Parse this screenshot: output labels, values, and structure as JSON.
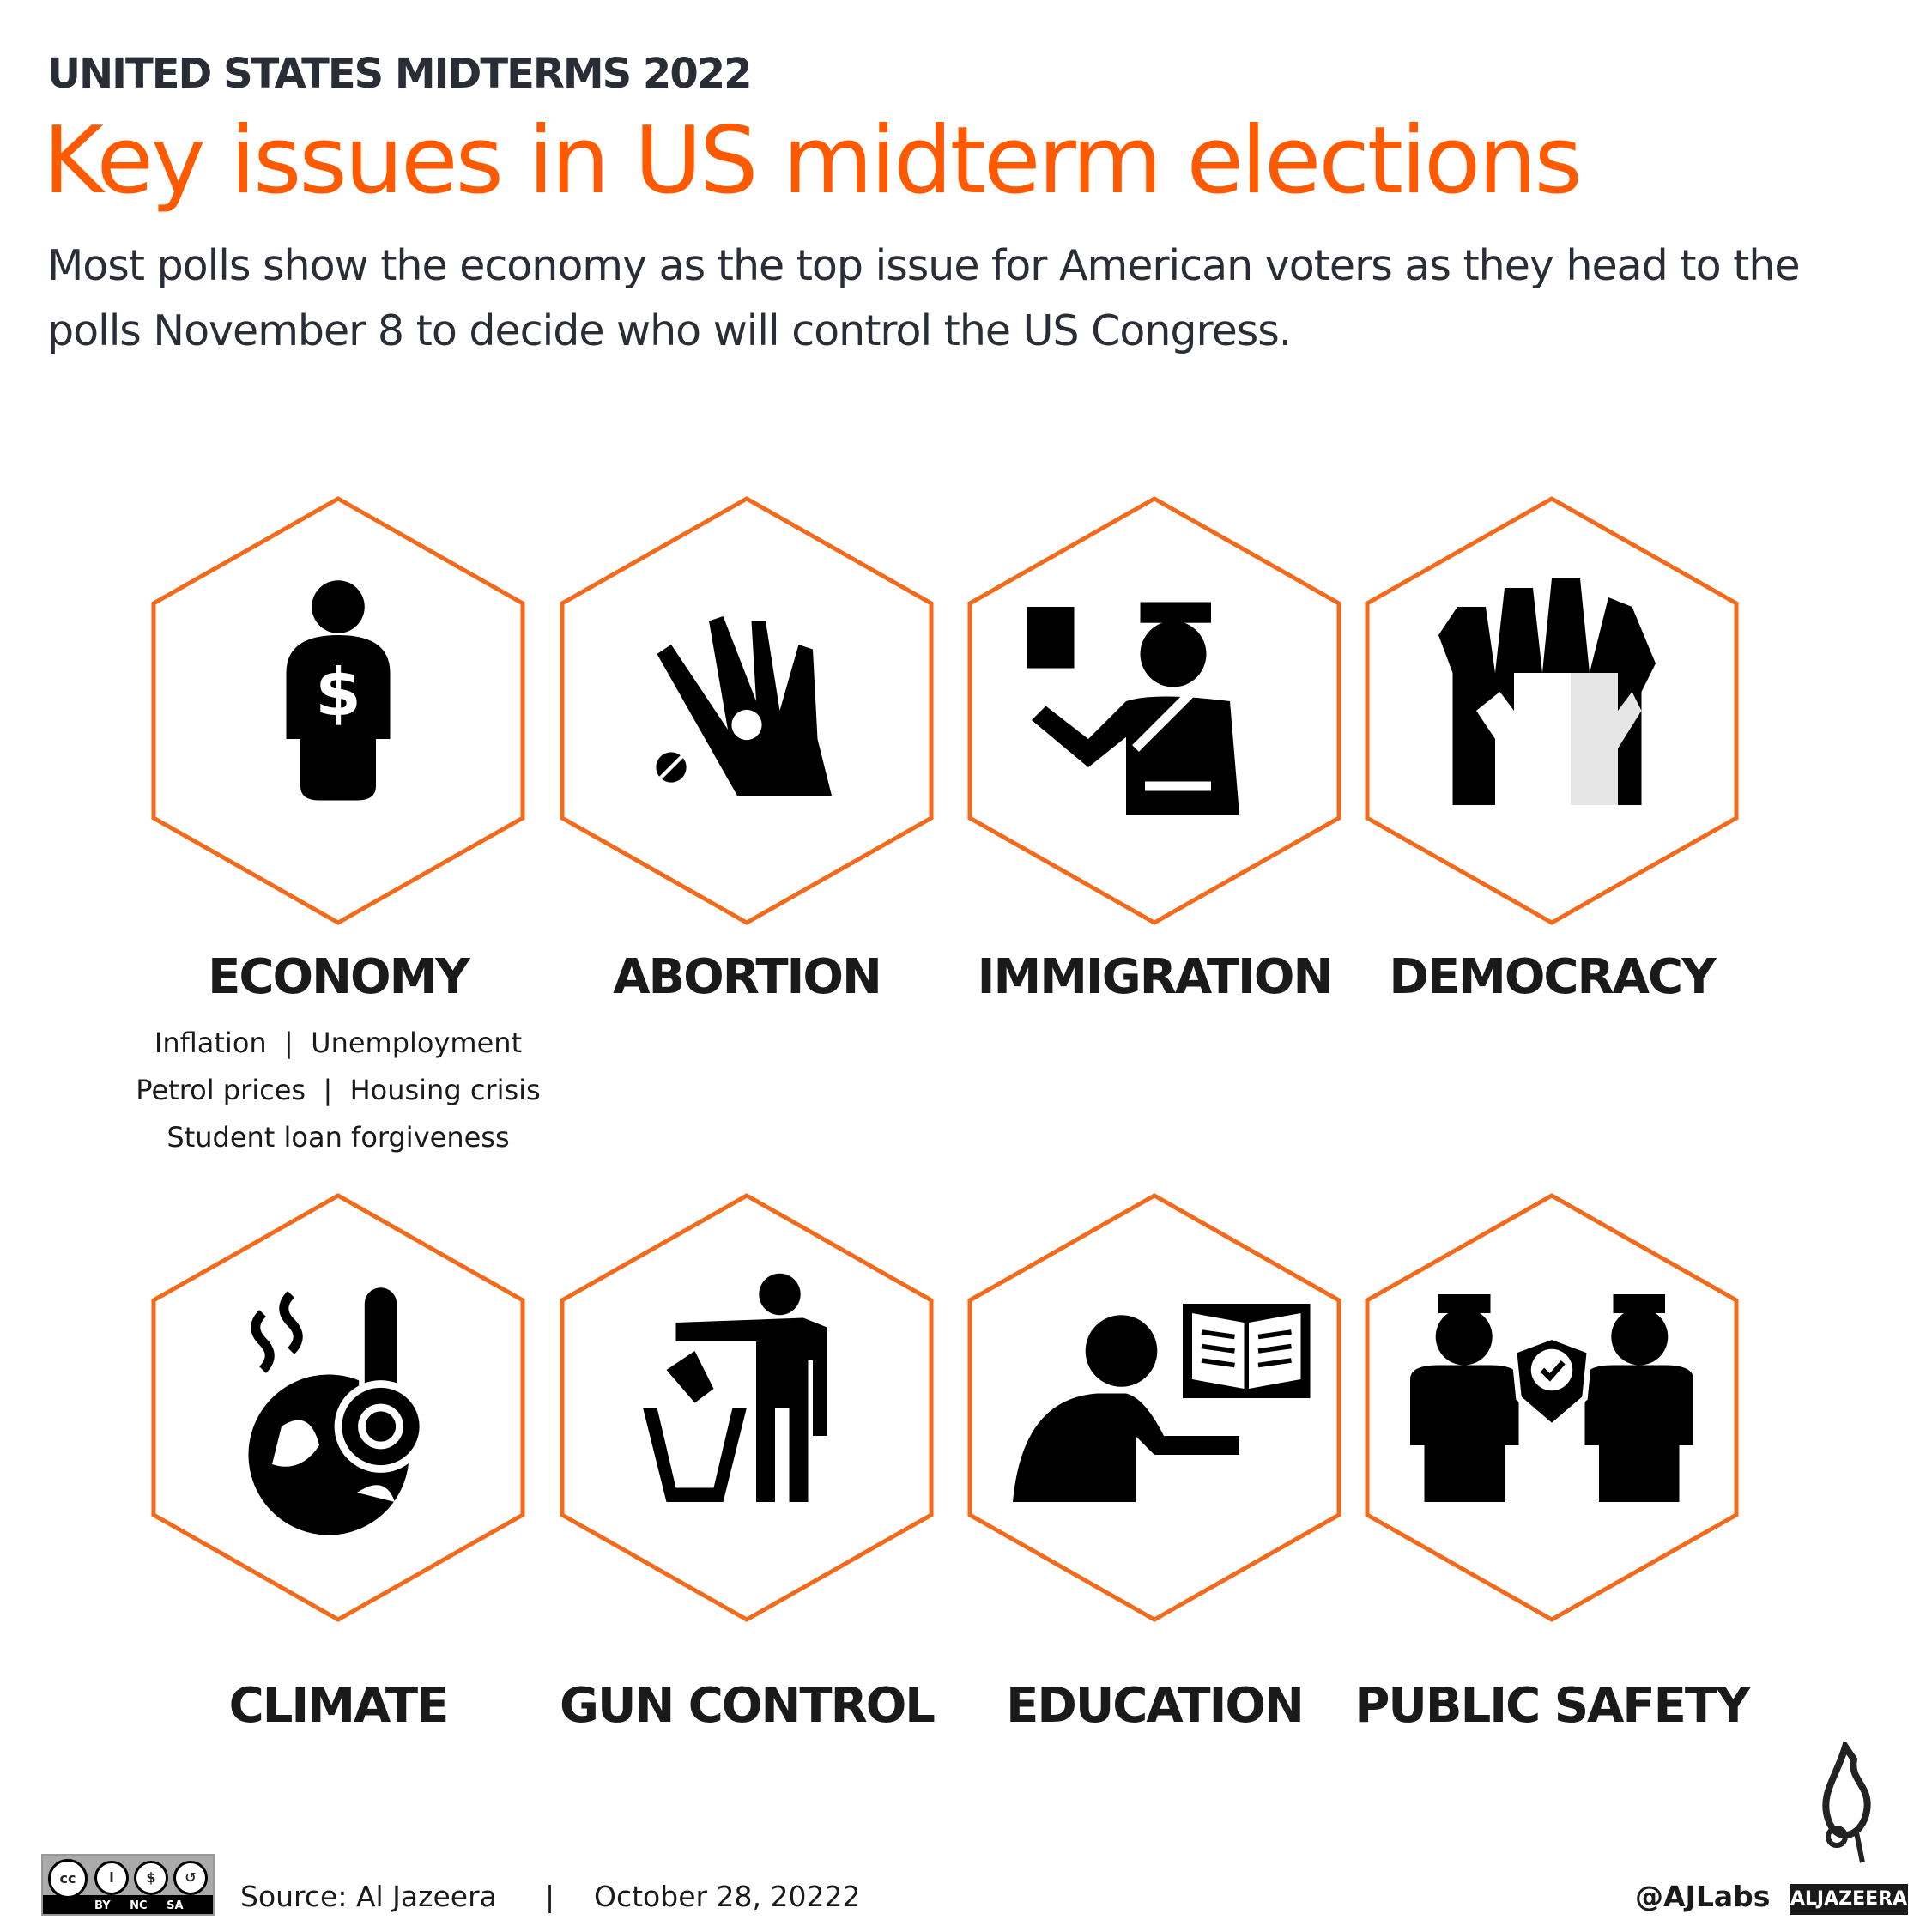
{
  "header": {
    "kicker": "UNITED STATES MIDTERMS 2022",
    "title": "Key issues in US midterm elections",
    "subtitle": "Most polls show the economy as the top issue for American voters as they head to the polls November 8 to decide who will control the US Congress."
  },
  "colors": {
    "accent": "#ff5a00",
    "hex_stroke": "#f26a1b",
    "text": "#2a2d36"
  },
  "issues": [
    {
      "label": "ECONOMY",
      "icon": "person-money-icon",
      "subitems": [
        "Inflation  |  Unemployment",
        "Petrol prices  |  Housing crisis",
        "Student loan forgiveness"
      ]
    },
    {
      "label": "ABORTION",
      "icon": "hand-pill-icon"
    },
    {
      "label": "IMMIGRATION",
      "icon": "officer-passport-icon"
    },
    {
      "label": "DEMOCRACY",
      "icon": "raised-hands-icon"
    },
    {
      "label": "CLIMATE",
      "icon": "globe-thermometer-icon"
    },
    {
      "label": "GUN CONTROL",
      "icon": "gun-trash-icon"
    },
    {
      "label": "EDUCATION",
      "icon": "teacher-book-icon"
    },
    {
      "label": "PUBLIC SAFETY",
      "icon": "police-shield-icon"
    }
  ],
  "footer": {
    "source": "Source:  Al Jazeera",
    "separator": "|",
    "date": "October 28, 20222",
    "handle": "@AJLabs",
    "brand": "ALJAZEERA",
    "license": "BY NC SA"
  }
}
